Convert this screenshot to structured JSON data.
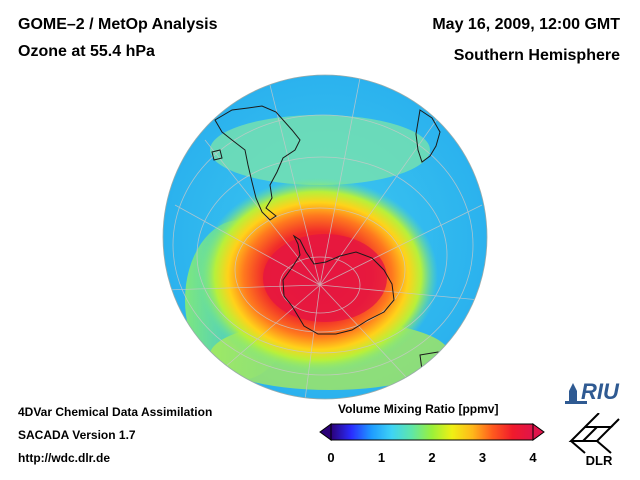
{
  "header": {
    "product": "GOME–2 / MetOp Analysis",
    "parameter": "Ozone at 55.4 hPa",
    "datetime": "May 16, 2009, 12:00 GMT",
    "region": "Southern Hemisphere"
  },
  "footer": {
    "line1": "4DVar Chemical Data Assimilation",
    "line2": "SACADA Version 1.7",
    "line3": "http://wdc.dlr.de"
  },
  "colorbar": {
    "title": "Volume Mixing Ratio [ppmv]",
    "min": 0,
    "max": 4,
    "ticks": [
      "0",
      "1",
      "2",
      "3",
      "4"
    ],
    "tick_values": [
      0,
      1,
      2,
      3,
      4
    ],
    "colors": [
      "#2b0077",
      "#2a2cff",
      "#1e9bff",
      "#3ed3f5",
      "#5fe6a8",
      "#9af03a",
      "#f0f014",
      "#ffb81a",
      "#ff5a1e",
      "#f01a2c",
      "#e0144b"
    ]
  },
  "logos": {
    "riu": "RIU",
    "dlr": "DLR"
  }
}
